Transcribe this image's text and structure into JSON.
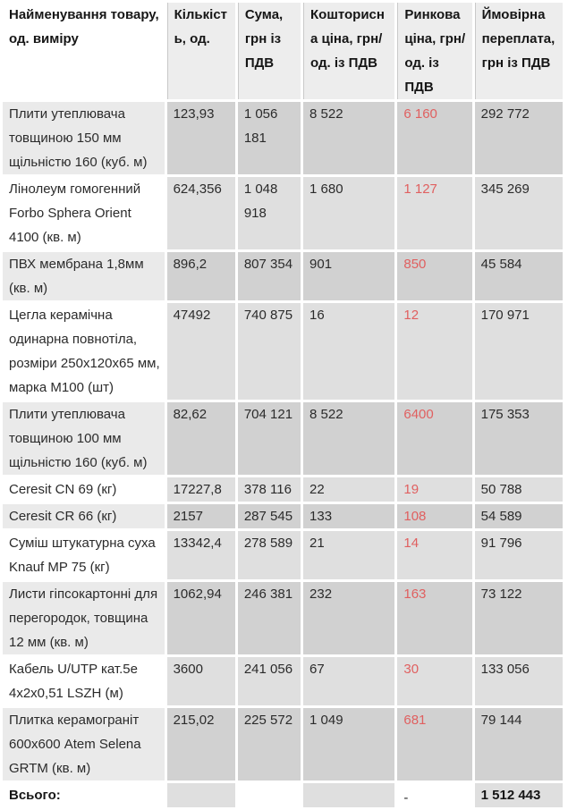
{
  "colors": {
    "market_red": "#e06060",
    "text_main": "#2b2b2b",
    "data_dark": "#d1d1d1",
    "data_light": "#dfdfdf",
    "name_shade": "#eaeaea",
    "header_shade": "#ededed",
    "header_line": "#c9c9c9"
  },
  "table": {
    "columns": [
      {
        "label": "Найменування товару, од. виміру"
      },
      {
        "label": "Кількість, од."
      },
      {
        "label": "Сума, грн із ПДВ"
      },
      {
        "label": "Кошторисна ціна, грн/од. із ПДВ"
      },
      {
        "label": "Ринкова ціна, грн/ од. із ПДВ"
      },
      {
        "label": "Ймовірна переплата, грн із ПДВ"
      }
    ],
    "rows": [
      {
        "name": "Плити утеплювача товщиною 150 мм щільністю 160 (куб. м)",
        "qty": "123,93",
        "sum": "1 056 181",
        "estimate": "8 522",
        "market": "6 160",
        "overpay": "292 772"
      },
      {
        "name": "Лінолеум гомогенний Forbo Sphera Orient 4100 (кв. м)",
        "qty": "624,356",
        "sum": "1 048 918",
        "estimate": "1 680",
        "market": "1 127",
        "overpay": "345 269"
      },
      {
        "name": "ПВХ мембрана 1,8мм (кв. м)",
        "qty": "896,2",
        "sum": "807 354",
        "estimate": "901",
        "market": "850",
        "overpay": "45 584"
      },
      {
        "name": "Цегла керамічна одинарна повнотіла, розміри 250х120х65 мм, марка М100 (шт)",
        "qty": "47492",
        "sum": "740 875",
        "estimate": "16",
        "market": "12",
        "overpay": "170 971"
      },
      {
        "name": "Плити утеплювача товщиною 100 мм щільністю 160 (куб. м)",
        "qty": "82,62",
        "sum": "704 121",
        "estimate": "8 522",
        "market": "6400",
        "overpay": "175 353"
      },
      {
        "name": "Ceresit CN 69 (кг)",
        "qty": "17227,8",
        "sum": "378 116",
        "estimate": "22",
        "market": "19",
        "overpay": "50 788"
      },
      {
        "name": "Ceresit CR 66 (кг)",
        "qty": "2157",
        "sum": "287 545",
        "estimate": "133",
        "market": "108",
        "overpay": "54 589"
      },
      {
        "name": "Суміш штукатурна суха Knauf MP 75 (кг)",
        "qty": "13342,4",
        "sum": "278 589",
        "estimate": "21",
        "market": "14",
        "overpay": "91 796"
      },
      {
        "name": "Листи гіпсокартонні для перегородок, товщина 12 мм (кв. м)",
        "qty": "1062,94",
        "sum": "246 381",
        "estimate": "232",
        "market": "163",
        "overpay": "73 122"
      },
      {
        "name": "Кабель U/UTP кат.5е 4х2х0,51 LSZH (м)",
        "qty": "3600",
        "sum": "241 056",
        "estimate": "67",
        "market": "30",
        "overpay": "133 056"
      },
      {
        "name": "Плитка керамограніт 600х600 Atem Selena GRTM (кв. м)",
        "qty": "215,02",
        "sum": "225 572",
        "estimate": "1 049",
        "market": "681",
        "overpay": "79 144"
      }
    ],
    "total": {
      "label": "Всього:",
      "market": "-",
      "overpay": "1 512 443"
    }
  }
}
